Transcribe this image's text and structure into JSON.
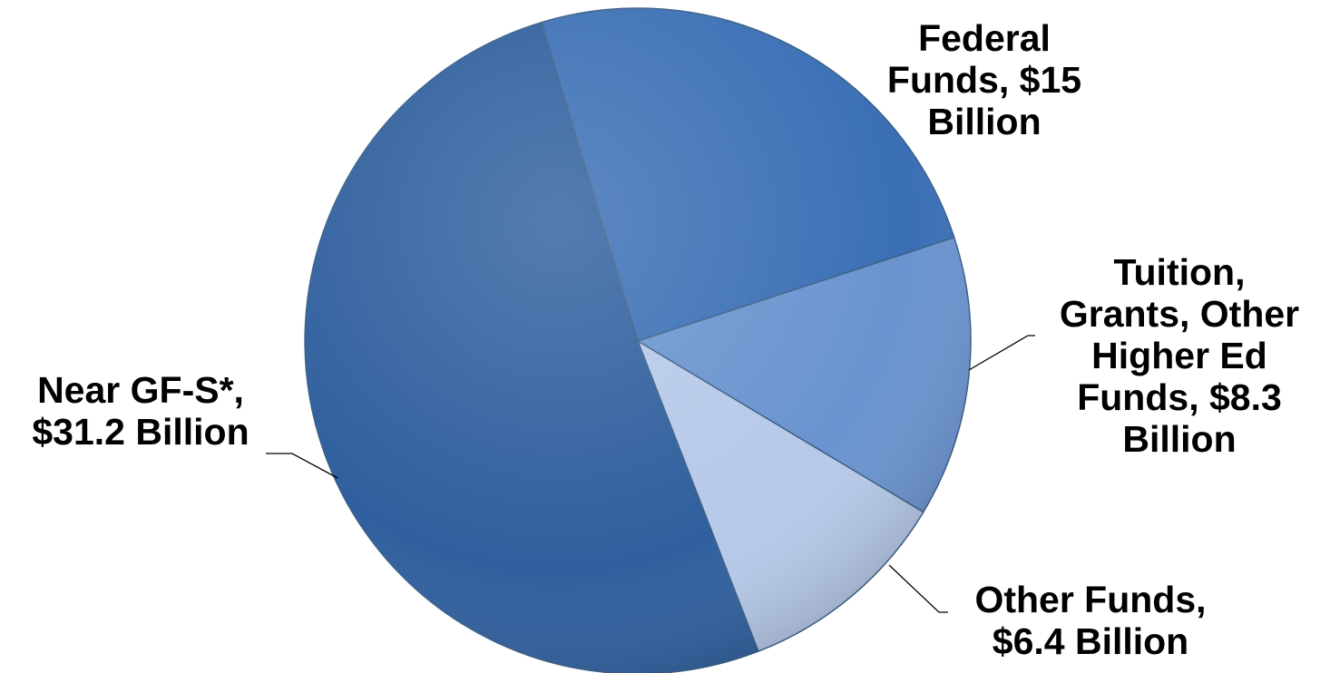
{
  "chart_data": {
    "type": "pie",
    "title": "",
    "unit": "Billion",
    "slices": [
      {
        "name": "Federal Funds",
        "value": 15,
        "label_lines": [
          "Federal",
          "Funds, $15",
          "Billion"
        ],
        "color": "#3a6fb5"
      },
      {
        "name": "Tuition, Grants, Other Higher Ed Funds",
        "value": 8.3,
        "label_lines": [
          "Tuition,",
          "Grants, Other",
          "Higher Ed",
          "Funds, $8.3",
          "Billion"
        ],
        "color": "#6a93cf"
      },
      {
        "name": "Other Funds",
        "value": 6.4,
        "label_lines": [
          "Other Funds,",
          "$6.4 Billion"
        ],
        "color": "#b6c9e8"
      },
      {
        "name": "Near GF-S*",
        "value": 31.2,
        "label_lines": [
          "Near GF-S*,",
          "$31.2 Billion"
        ],
        "color": "#2f5f9e"
      }
    ],
    "legend": "none"
  }
}
